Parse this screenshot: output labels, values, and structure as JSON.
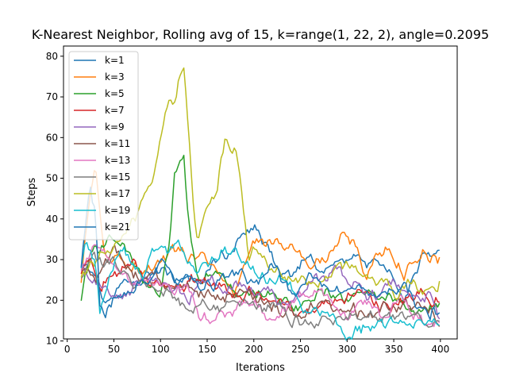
{
  "chart_data": {
    "type": "line",
    "title": "K-Nearest Neighbor, Rolling avg of 15, k=range(1, 22, 2), angle=0.2095",
    "xlabel": "Iterations",
    "ylabel": "Steps",
    "xlim": [
      -4,
      418
    ],
    "ylim": [
      10.5,
      82.5
    ],
    "xticks": [
      0,
      50,
      100,
      150,
      200,
      250,
      300,
      350,
      400
    ],
    "yticks": [
      10,
      20,
      30,
      40,
      50,
      60,
      70,
      80
    ],
    "grid": false,
    "legend_position": "upper-left",
    "x_start": 15,
    "x_end": 400,
    "series": [
      {
        "name": "k=1",
        "color": "#1f77b4",
        "x": [
          15,
          30,
          40,
          60,
          80,
          100,
          120,
          140,
          160,
          180,
          200,
          220,
          240,
          260,
          280,
          300,
          320,
          340,
          360,
          380,
          400
        ],
        "y": [
          30,
          27,
          20,
          26,
          24,
          28,
          26,
          25,
          30,
          34,
          39,
          30,
          27,
          31,
          28,
          30,
          29,
          27,
          20,
          32,
          33
        ]
      },
      {
        "name": "k=3",
        "color": "#ff7f0e",
        "x": [
          15,
          25,
          30,
          40,
          60,
          80,
          100,
          120,
          140,
          160,
          180,
          200,
          220,
          240,
          260,
          280,
          300,
          320,
          340,
          360,
          380,
          400
        ],
        "y": [
          25,
          45,
          52,
          32,
          28,
          27,
          30,
          33,
          30,
          28,
          22,
          35,
          33,
          33,
          28,
          31,
          37,
          27,
          34,
          27,
          32,
          30
        ]
      },
      {
        "name": "k=5",
        "color": "#2ca02c",
        "x": [
          15,
          25,
          40,
          60,
          80,
          100,
          110,
          115,
          125,
          130,
          140,
          160,
          180,
          200,
          220,
          240,
          260,
          280,
          300,
          320,
          340,
          360,
          380,
          400
        ],
        "y": [
          20,
          31,
          32,
          35,
          25,
          20,
          32,
          51,
          54,
          40,
          25,
          26,
          23,
          22,
          22,
          19,
          21,
          22,
          20,
          21,
          20,
          19,
          18,
          19
        ]
      },
      {
        "name": "k=7",
        "color": "#d62728",
        "x": [
          15,
          25,
          35,
          50,
          70,
          90,
          110,
          130,
          150,
          170,
          190,
          210,
          230,
          250,
          270,
          290,
          310,
          330,
          350,
          370,
          390,
          400
        ],
        "y": [
          26,
          31,
          23,
          27,
          30,
          24,
          22,
          24,
          25,
          23,
          21,
          20,
          21,
          17,
          19,
          20,
          22,
          18,
          19,
          20,
          21,
          20
        ]
      },
      {
        "name": "k=9",
        "color": "#9467bd",
        "x": [
          15,
          30,
          50,
          70,
          90,
          110,
          130,
          150,
          170,
          190,
          210,
          230,
          250,
          270,
          290,
          310,
          330,
          350,
          370,
          390,
          400
        ],
        "y": [
          28,
          24,
          20,
          22,
          25,
          24,
          22,
          26,
          23,
          25,
          22,
          20,
          22,
          24,
          27,
          23,
          21,
          25,
          21,
          20,
          15
        ]
      },
      {
        "name": "k=11",
        "color": "#8c564b",
        "x": [
          15,
          30,
          50,
          70,
          90,
          110,
          130,
          150,
          170,
          190,
          210,
          230,
          250,
          270,
          290,
          310,
          330,
          350,
          370,
          390,
          400
        ],
        "y": [
          27,
          25,
          32,
          25,
          28,
          24,
          23,
          22,
          21,
          23,
          20,
          18,
          17,
          20,
          19,
          18,
          17,
          19,
          18,
          19,
          16
        ]
      },
      {
        "name": "k=13",
        "color": "#e377c2",
        "x": [
          15,
          30,
          50,
          70,
          90,
          110,
          130,
          140,
          150,
          160,
          180,
          200,
          220,
          240,
          260,
          280,
          300,
          320,
          340,
          360,
          380,
          400
        ],
        "y": [
          29,
          35,
          30,
          26,
          25,
          23,
          22,
          16,
          15,
          17,
          18,
          20,
          16,
          19,
          22,
          19,
          16,
          21,
          17,
          19,
          15,
          15
        ]
      },
      {
        "name": "k=15",
        "color": "#7f7f7f",
        "x": [
          15,
          30,
          50,
          70,
          90,
          110,
          130,
          150,
          170,
          190,
          210,
          230,
          250,
          270,
          290,
          310,
          330,
          350,
          370,
          390,
          400
        ],
        "y": [
          26,
          30,
          28,
          24,
          26,
          23,
          18,
          19,
          20,
          19,
          18,
          17,
          15,
          14,
          15,
          15,
          16,
          17,
          15,
          14,
          14
        ]
      },
      {
        "name": "k=17",
        "color": "#bcbd22",
        "x": [
          15,
          30,
          50,
          70,
          80,
          90,
          100,
          110,
          115,
          120,
          125,
          130,
          135,
          140,
          145,
          150,
          160,
          165,
          170,
          175,
          180,
          185,
          190,
          195,
          200,
          210,
          230,
          250,
          270,
          290,
          310,
          330,
          350,
          370,
          390,
          400
        ],
        "y": [
          25,
          30,
          33,
          38,
          45,
          50,
          60,
          70,
          68,
          75,
          78,
          62,
          45,
          35,
          38,
          42,
          48,
          55,
          60,
          57,
          58,
          50,
          40,
          30,
          33,
          30,
          27,
          25,
          24,
          28,
          26,
          25,
          21,
          25,
          21,
          26
        ]
      },
      {
        "name": "k=19",
        "color": "#17becf",
        "x": [
          15,
          20,
          25,
          30,
          35,
          40,
          50,
          60,
          70,
          80,
          90,
          100,
          110,
          120,
          130,
          140,
          150,
          170,
          190,
          210,
          230,
          250,
          270,
          290,
          300,
          320,
          340,
          360,
          380,
          400
        ],
        "y": [
          29,
          35,
          33,
          30,
          18,
          20,
          28,
          32,
          30,
          25,
          31,
          34,
          32,
          35,
          30,
          24,
          27,
          33,
          29,
          26,
          25,
          20,
          17,
          15,
          13,
          14,
          14,
          15,
          15,
          14
        ]
      },
      {
        "name": "k=21",
        "color": "#1f77b4",
        "x": [
          15,
          20,
          25,
          30,
          35,
          40,
          50,
          60,
          70,
          80,
          90,
          100,
          120,
          140,
          160,
          180,
          200,
          220,
          240,
          260,
          280,
          300,
          320,
          340,
          360,
          380,
          400
        ],
        "y": [
          28,
          40,
          48,
          42,
          18,
          16,
          20,
          22,
          23,
          26,
          25,
          28,
          27,
          24,
          25,
          27,
          24,
          28,
          22,
          25,
          24,
          20,
          21,
          22,
          23,
          19,
          18
        ]
      }
    ]
  }
}
